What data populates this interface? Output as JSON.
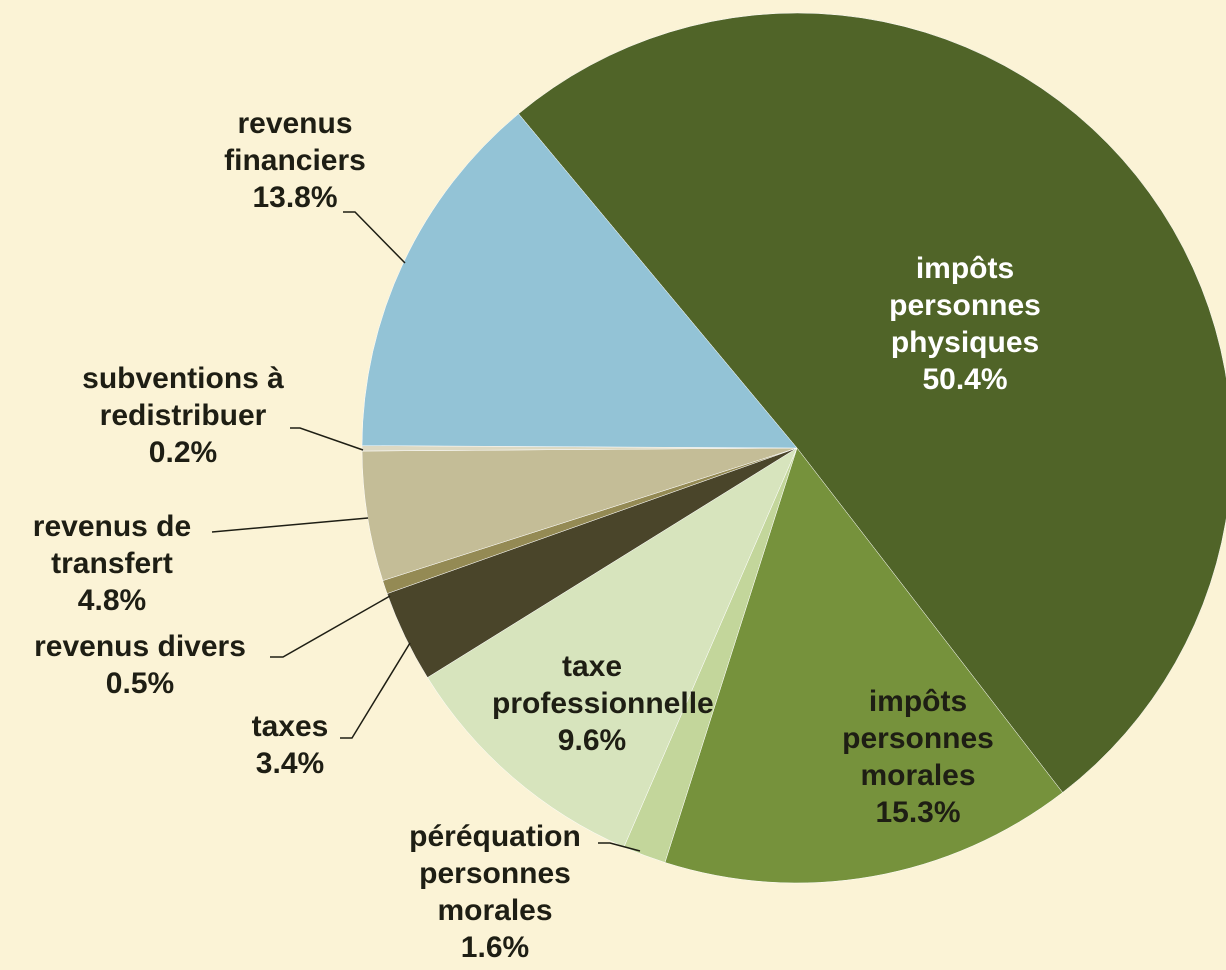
{
  "chart_data": {
    "type": "pie",
    "categories": [
      "impôts personnes physiques",
      "impôts personnes morales",
      "péréquation personnes morales",
      "taxe professionnelle",
      "taxes",
      "revenus divers",
      "revenus de transfert",
      "subventions à redistribuer",
      "revenus financiers"
    ],
    "values": [
      50.4,
      15.3,
      1.6,
      9.6,
      3.4,
      0.5,
      4.8,
      0.2,
      13.8
    ],
    "value_labels": [
      "50.4%",
      "15.3%",
      "1.6%",
      "9.6%",
      "3.4%",
      "0.5%",
      "4.8%",
      "0.2%",
      "13.8%"
    ],
    "colors": [
      "#506428",
      "#76923c",
      "#c3d69b",
      "#d7e4bd",
      "#4a452a",
      "#948a54",
      "#c4bd97",
      "#ddd9c3",
      "#93c3d6"
    ]
  }
}
